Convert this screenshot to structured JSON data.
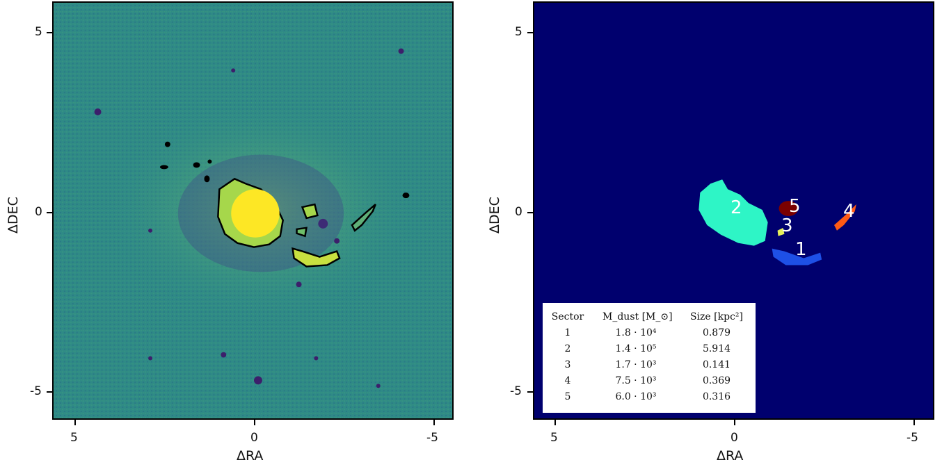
{
  "left_panel": {
    "xlabel": "ΔRA",
    "ylabel": "ΔDEC",
    "xticks": [
      "5",
      "0",
      "-5"
    ],
    "yticks": [
      "5",
      "0",
      "-5"
    ]
  },
  "right_panel": {
    "xlabel": "ΔRA",
    "ylabel": "ΔDEC",
    "xticks": [
      "5",
      "0",
      "-5"
    ],
    "yticks": [
      "5",
      "0",
      "-5"
    ],
    "sector_labels": [
      "2",
      "5",
      "3",
      "4",
      "1"
    ],
    "table": {
      "headers": [
        "Sector",
        "M_dust [M_⊙]",
        "Size [kpc²]"
      ],
      "rows": [
        [
          "1",
          "1.8 · 10⁴",
          "0.879"
        ],
        [
          "2",
          "1.4 · 10⁵",
          "5.914"
        ],
        [
          "3",
          "1.7 · 10³",
          "0.141"
        ],
        [
          "4",
          "7.5 · 10³",
          "0.369"
        ],
        [
          "5",
          "6.0 · 10³",
          "0.316"
        ]
      ]
    }
  },
  "colors": {
    "left_background": "#2f8a86",
    "left_core": "#fde725",
    "left_mid": "#a6d74b",
    "right_background": "#00006e",
    "sector_1": "#1e50e6",
    "sector_2": "#2ef5c6",
    "sector_3": "#e6f05a",
    "sector_4": "#ff5a14",
    "sector_5": "#7a0000"
  }
}
